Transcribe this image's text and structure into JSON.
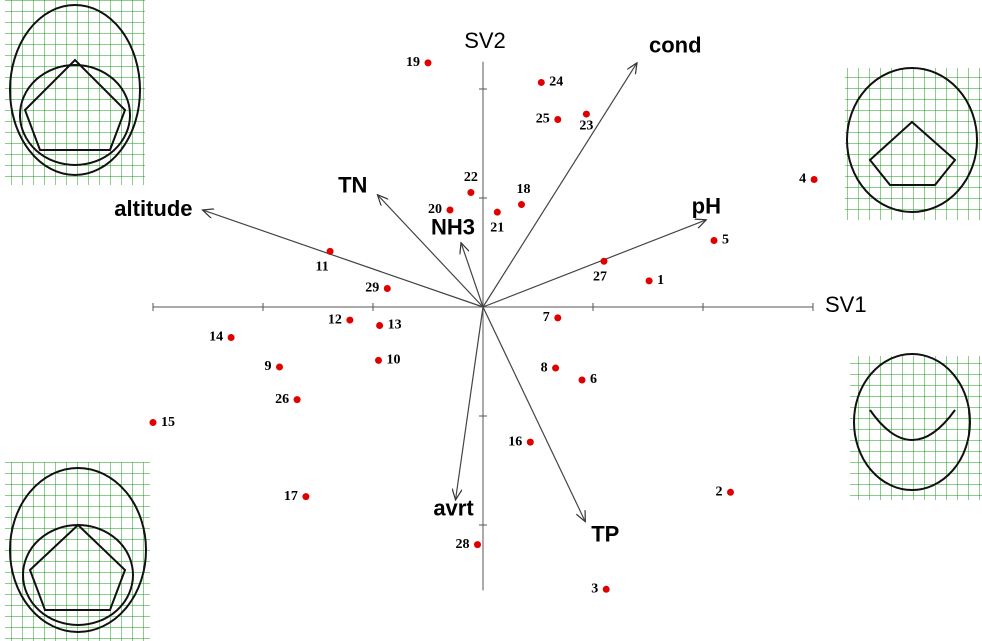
{
  "chart_data": {
    "type": "biplot",
    "x_label": "SV1",
    "y_label": "SV2",
    "xlim": [
      -3,
      3
    ],
    "ylim": [
      -2.6,
      2.25
    ],
    "xticks": [
      -3,
      -2,
      -1,
      1,
      2,
      3
    ],
    "yticks": [
      -2,
      -1,
      1,
      2
    ],
    "point_color": "#e00000",
    "points": {
      "labels": [
        "19",
        "24",
        "25",
        "23",
        "4",
        "22",
        "20",
        "21",
        "18",
        "5",
        "11",
        "27",
        "1",
        "29",
        "12",
        "13",
        "7",
        "14",
        "10",
        "9",
        "8",
        "6",
        "26",
        "15",
        "16",
        "17",
        "2",
        "28",
        "3"
      ],
      "x": [
        -0.5,
        0.53,
        0.68,
        0.94,
        3.01,
        -0.11,
        -0.3,
        0.13,
        0.35,
        2.1,
        -1.39,
        1.1,
        1.51,
        -0.87,
        -1.21,
        -0.94,
        0.68,
        -2.29,
        -0.95,
        -1.85,
        0.66,
        0.9,
        -1.69,
        -3.0,
        0.43,
        -1.61,
        2.25,
        -0.05,
        1.12
      ],
      "y": [
        2.24,
        2.06,
        1.72,
        1.77,
        1.17,
        1.05,
        0.89,
        0.87,
        0.94,
        0.61,
        0.51,
        0.42,
        0.24,
        0.17,
        -0.12,
        -0.17,
        -0.1,
        -0.28,
        -0.49,
        -0.55,
        -0.56,
        -0.67,
        -0.85,
        -1.06,
        -1.24,
        -1.74,
        -1.7,
        -2.18,
        -2.59
      ]
    },
    "vectors": {
      "names": [
        "cond",
        "pH",
        "altitude",
        "TN",
        "NH3",
        "avrt",
        "TP"
      ],
      "x": [
        1.4,
        2.03,
        -2.55,
        -0.96,
        -0.2,
        -0.25,
        0.93
      ],
      "y": [
        2.24,
        0.8,
        0.89,
        1.03,
        0.59,
        -1.77,
        -1.97
      ]
    }
  }
}
